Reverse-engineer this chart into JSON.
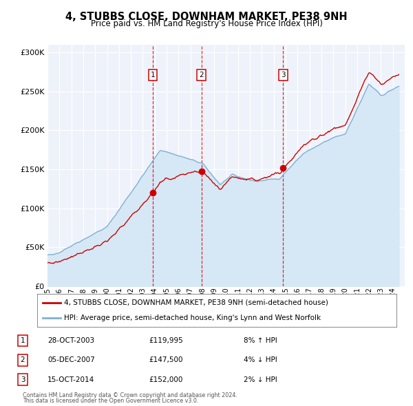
{
  "title": "4, STUBBS CLOSE, DOWNHAM MARKET, PE38 9NH",
  "subtitle": "Price paid vs. HM Land Registry's House Price Index (HPI)",
  "legend_line1": "4, STUBBS CLOSE, DOWNHAM MARKET, PE38 9NH (semi-detached house)",
  "legend_line2": "HPI: Average price, semi-detached house, King's Lynn and West Norfolk",
  "footer1": "Contains HM Land Registry data © Crown copyright and database right 2024.",
  "footer2": "This data is licensed under the Open Government Licence v3.0.",
  "sale_color": "#cc0000",
  "hpi_color": "#7eb0d4",
  "hpi_fill_color": "#d6e8f5",
  "plot_bg_color": "#eef2fa",
  "grid_color": "#ffffff",
  "ylim": [
    0,
    310000
  ],
  "yticks": [
    0,
    50000,
    100000,
    150000,
    200000,
    250000,
    300000
  ],
  "ytick_labels": [
    "£0",
    "£50K",
    "£100K",
    "£150K",
    "£200K",
    "£250K",
    "£300K"
  ],
  "sales": [
    {
      "date_num": 2003.83,
      "price": 119995,
      "label": "1"
    },
    {
      "date_num": 2007.92,
      "price": 147500,
      "label": "2"
    },
    {
      "date_num": 2014.79,
      "price": 152000,
      "label": "3"
    }
  ],
  "table_rows": [
    {
      "num": "1",
      "date": "28-OCT-2003",
      "price": "£119,995",
      "hpi": "8% ↑ HPI"
    },
    {
      "num": "2",
      "date": "05-DEC-2007",
      "price": "£147,500",
      "hpi": "4% ↓ HPI"
    },
    {
      "num": "3",
      "date": "15-OCT-2014",
      "price": "£152,000",
      "hpi": "2% ↓ HPI"
    }
  ],
  "xmin": 1995,
  "xmax": 2025
}
